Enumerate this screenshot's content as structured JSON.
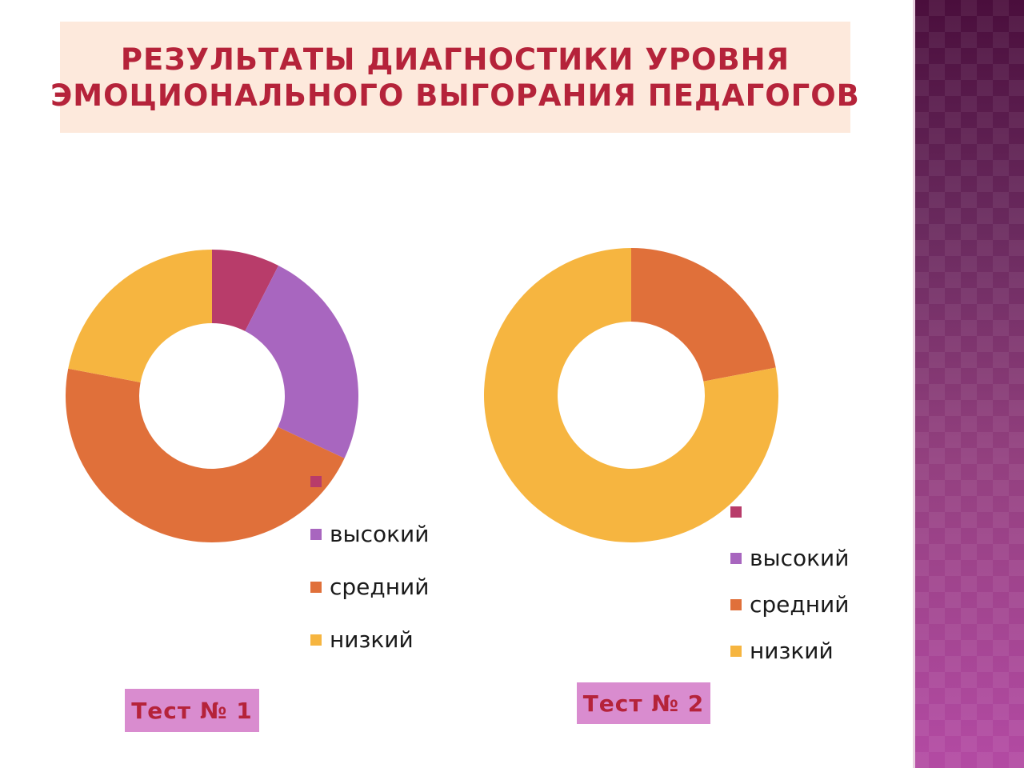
{
  "title": {
    "line1": "РЕЗУЛЬТАТЫ ДИАГНОСТИКИ УРОВНЯ",
    "line2": "ЭМОЦИОНАЛЬНОГО ВЫГОРАНИЯ ПЕДАГОГОВ"
  },
  "colors": {
    "title_text": "#b5233a",
    "title_bg": "#fde9dc",
    "test_box_bg": "#d98ccf"
  },
  "chart_data": [
    {
      "type": "pie",
      "variant": "donut",
      "caption": "Тест № 1",
      "categories": [
        "",
        "высокий",
        "средний",
        "низкий"
      ],
      "values": [
        7.5,
        24.5,
        46,
        22
      ],
      "colors": [
        "#b83c6a",
        "#a866bf",
        "#e0703a",
        "#f6b540"
      ],
      "legend_position": "bottom-right"
    },
    {
      "type": "pie",
      "variant": "donut",
      "caption": "Тест № 2",
      "categories": [
        "",
        "высокий",
        "средний",
        "низкий"
      ],
      "values": [
        0,
        0,
        22,
        78
      ],
      "colors": [
        "#b83c6a",
        "#a866bf",
        "#e0703a",
        "#f6b540"
      ],
      "legend_position": "bottom-right"
    }
  ]
}
